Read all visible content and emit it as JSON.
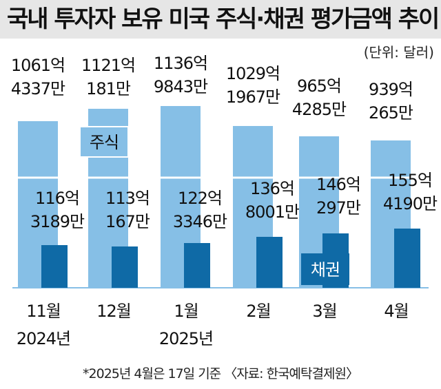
{
  "title": "국내 투자자 보유 미국 주식·채권 평가금액 추이",
  "unit_note": "(단위: 달러)",
  "footnote": "*2025년 4월은 17일 기준 〈자료: 한국예탁결제원〉",
  "colors": {
    "stock": "#86bfe6",
    "bond": "#0f6aa6",
    "title_bg": "#e6e6e6"
  },
  "chart_data": {
    "type": "bar",
    "categories": [
      "11월",
      "12월",
      "1월",
      "2월",
      "3월",
      "4월"
    ],
    "year_labels": [
      "2024년",
      "",
      "2025년",
      "",
      "",
      ""
    ],
    "series": [
      {
        "name": "주식",
        "values": [
          10614337,
          11210181,
          11369843,
          10291967,
          9654285,
          9390265
        ],
        "label_lines": [
          [
            "1061억",
            "4337만"
          ],
          [
            "1121억",
            "181만"
          ],
          [
            "1136억",
            "9843만"
          ],
          [
            "1029억",
            "1967만"
          ],
          [
            "965억",
            "4285만"
          ],
          [
            "939억",
            "265만"
          ]
        ]
      },
      {
        "name": "채권",
        "values": [
          1163189,
          1130167,
          1223346,
          1368001,
          1460297,
          1554190
        ],
        "label_lines": [
          [
            "116억",
            "3189만"
          ],
          [
            "113억",
            "167만"
          ],
          [
            "122억",
            "3346만"
          ],
          [
            "136억",
            "8001만"
          ],
          [
            "146억",
            "297만"
          ],
          [
            "155억",
            "4190만"
          ]
        ]
      }
    ],
    "value_unit": "만 달러"
  }
}
